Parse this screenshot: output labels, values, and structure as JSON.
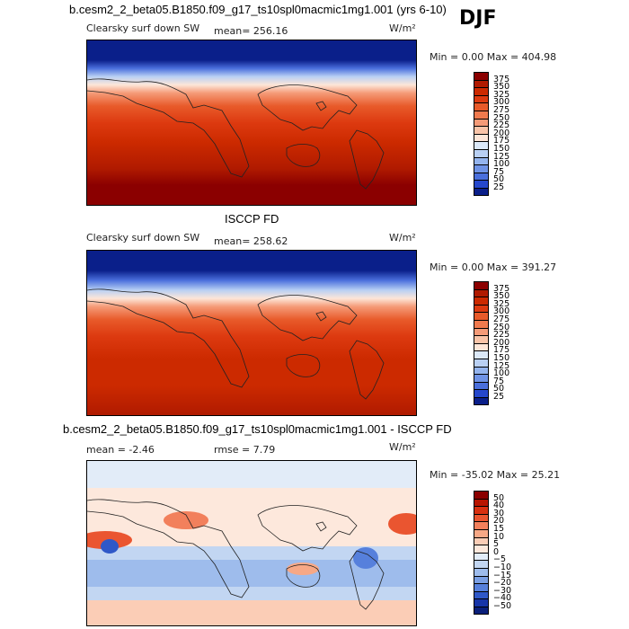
{
  "season": "DJF",
  "panels": [
    {
      "title": "b.cesm2_2_beta05.B1850.f09_g17_ts10spl0macmic1mg1.001 (yrs 6-10)",
      "variable": "Clearsky surf down SW",
      "mean_text": "mean= 256.16",
      "units": "W/m²",
      "minmax_text": "Min =   0.00 Max = 404.98",
      "colorbar": {
        "labels": [
          "375",
          "350",
          "325",
          "300",
          "275",
          "250",
          "225",
          "200",
          "175",
          "150",
          "125",
          "100",
          "75",
          "50",
          "25"
        ],
        "colors": [
          "#8b0000",
          "#b01a00",
          "#cc2a00",
          "#dd3a10",
          "#e85a2a",
          "#f07a4e",
          "#f59b78",
          "#f9c4a8",
          "#fde6d8",
          "#dbe8f8",
          "#b9d0f4",
          "#94b4ee",
          "#6f93e6",
          "#4a6fdc",
          "#2547cc",
          "#0a1f8a"
        ]
      }
    },
    {
      "title": "ISCCP FD",
      "variable": "Clearsky surf down SW",
      "mean_text": "mean= 258.62",
      "units": "W/m²",
      "minmax_text": "Min =   0.00 Max = 391.27",
      "colorbar": {
        "labels": [
          "375",
          "350",
          "325",
          "300",
          "275",
          "250",
          "225",
          "200",
          "175",
          "150",
          "125",
          "100",
          "75",
          "50",
          "25"
        ],
        "colors": [
          "#8b0000",
          "#b01a00",
          "#cc2a00",
          "#dd3a10",
          "#e85a2a",
          "#f07a4e",
          "#f59b78",
          "#f9c4a8",
          "#fde6d8",
          "#dbe8f8",
          "#b9d0f4",
          "#94b4ee",
          "#6f93e6",
          "#4a6fdc",
          "#2547cc",
          "#0a1f8a"
        ]
      }
    },
    {
      "title": "b.cesm2_2_beta05.B1850.f09_g17_ts10spl0macmic1mg1.001 - ISCCP FD",
      "mean_text": "mean =   -2.46",
      "rmse_text": "rmse =    7.79",
      "units": "W/m²",
      "minmax_text": "Min = -35.02 Max =  25.21",
      "colorbar": {
        "labels": [
          "50",
          "40",
          "30",
          "20",
          "15",
          "10",
          "5",
          "0",
          "−5",
          "−10",
          "−15",
          "−20",
          "−30",
          "−40",
          "−50"
        ],
        "colors": [
          "#8b0000",
          "#b81500",
          "#d83010",
          "#ea5530",
          "#f2805c",
          "#f7a886",
          "#fbcdb6",
          "#fde8dc",
          "#e2ecf8",
          "#c2d6f2",
          "#9ebcec",
          "#7a9fe4",
          "#5680dc",
          "#2f58c8",
          "#1735a8",
          "#0a1f7a"
        ]
      }
    }
  ]
}
